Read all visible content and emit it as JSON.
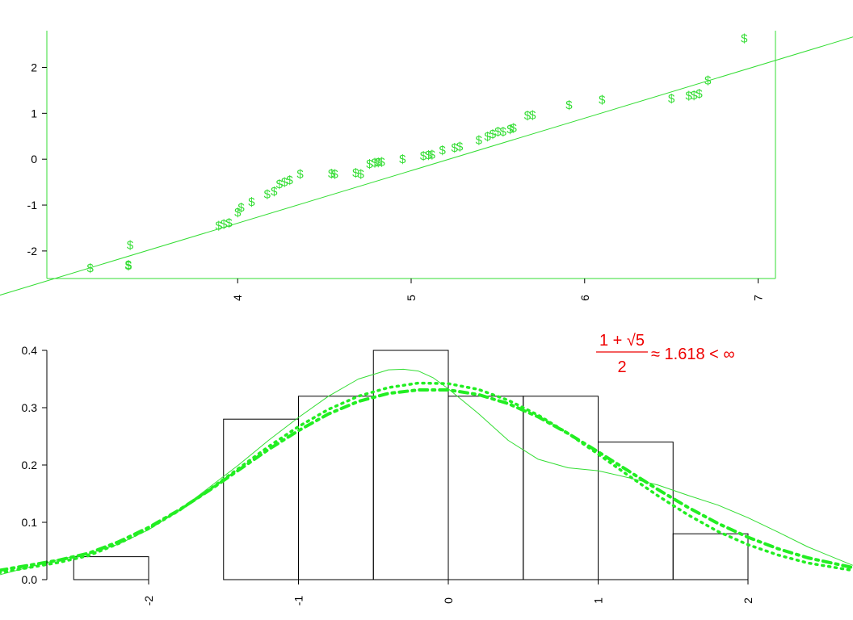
{
  "colors": {
    "points": "#33dd33",
    "line": "#33dd33",
    "curve_thin": "#33dd33",
    "curve_dashed": "#22ee22",
    "bars": "#000000",
    "annotation": "#ee0000"
  },
  "chart_data": [
    {
      "type": "scatter",
      "marker": "$",
      "title": "",
      "xlabel": "",
      "ylabel": "",
      "xlim": [
        2.9,
        7.1
      ],
      "ylim": [
        -2.6,
        2.8
      ],
      "xticks": [
        4,
        5,
        6,
        7
      ],
      "xtick_labels": [
        "4",
        "5",
        "6",
        "7"
      ],
      "yticks": [
        -2,
        -1,
        0,
        1,
        2
      ],
      "ytick_labels": [
        "-2",
        "-1",
        "0",
        "1",
        "2"
      ],
      "points": {
        "x": [
          3.15,
          3.37,
          3.37,
          3.38,
          3.89,
          3.92,
          3.95,
          4.0,
          4.02,
          4.08,
          4.17,
          4.21,
          4.24,
          4.27,
          4.3,
          4.36,
          4.54,
          4.56,
          4.68,
          4.71,
          4.76,
          4.79,
          4.81,
          4.83,
          4.95,
          5.07,
          5.1,
          5.12,
          5.18,
          5.25,
          5.28,
          5.39,
          5.44,
          5.47,
          5.5,
          5.53,
          5.57,
          5.59,
          5.67,
          5.7,
          5.91,
          6.1,
          6.5,
          6.6,
          6.63,
          6.66,
          6.71,
          6.92
        ],
        "y": [
          -2.37,
          -2.3,
          -2.32,
          -1.87,
          -1.45,
          -1.41,
          -1.39,
          -1.16,
          -1.05,
          -0.93,
          -0.76,
          -0.7,
          -0.54,
          -0.5,
          -0.45,
          -0.32,
          -0.31,
          -0.32,
          -0.3,
          -0.32,
          -0.1,
          -0.08,
          -0.07,
          -0.06,
          0.0,
          0.07,
          0.09,
          0.1,
          0.2,
          0.25,
          0.28,
          0.42,
          0.5,
          0.55,
          0.6,
          0.6,
          0.65,
          0.68,
          0.95,
          0.96,
          1.18,
          1.3,
          1.32,
          1.38,
          1.39,
          1.43,
          1.72,
          2.63
        ]
      },
      "line": {
        "intercept": -5.97,
        "slope": 1.144
      }
    },
    {
      "type": "bar",
      "title": "",
      "xlabel": "",
      "ylabel": "",
      "xlim": [
        -2.7,
        2.7
      ],
      "ylim": [
        0,
        0.4
      ],
      "xticks": [
        -2,
        -1,
        0,
        1,
        2
      ],
      "xtick_labels": [
        "-2",
        "-1",
        "0",
        "1",
        "2"
      ],
      "yticks": [
        0,
        0.1,
        0.2,
        0.3,
        0.4
      ],
      "ytick_labels": [
        "0.0",
        "0.1",
        "0.2",
        "0.3",
        "0.4"
      ],
      "bins": [
        {
          "x0": -2.5,
          "x1": -2.0,
          "density": 0.04
        },
        {
          "x0": -2.0,
          "x1": -1.5,
          "density": 0.0
        },
        {
          "x0": -1.5,
          "x1": -1.0,
          "density": 0.28
        },
        {
          "x0": -1.0,
          "x1": -0.5,
          "density": 0.32
        },
        {
          "x0": -0.5,
          "x1": 0.0,
          "density": 0.4
        },
        {
          "x0": 0.0,
          "x1": 0.5,
          "density": 0.32
        },
        {
          "x0": 0.5,
          "x1": 1.0,
          "density": 0.32
        },
        {
          "x0": 1.0,
          "x1": 1.5,
          "density": 0.24
        },
        {
          "x0": 1.5,
          "x1": 2.0,
          "density": 0.08
        }
      ],
      "curves": [
        {
          "style": "thin-solid",
          "x": [
            -3.0,
            -2.6,
            -2.4,
            -2.2,
            -2.0,
            -1.8,
            -1.6,
            -1.4,
            -1.2,
            -1.0,
            -0.8,
            -0.6,
            -0.4,
            -0.3,
            -0.2,
            -0.1,
            0.0,
            0.2,
            0.4,
            0.6,
            0.8,
            1.0,
            1.2,
            1.4,
            1.6,
            1.8,
            2.0,
            2.2,
            2.4,
            2.7
          ],
          "y": [
            0.008,
            0.035,
            0.045,
            0.062,
            0.087,
            0.12,
            0.16,
            0.2,
            0.243,
            0.283,
            0.32,
            0.35,
            0.366,
            0.367,
            0.364,
            0.352,
            0.333,
            0.29,
            0.243,
            0.21,
            0.195,
            0.19,
            0.178,
            0.165,
            0.147,
            0.13,
            0.108,
            0.083,
            0.057,
            0.025
          ]
        },
        {
          "style": "dotted",
          "x": [
            -3.0,
            -2.6,
            -2.4,
            -2.2,
            -2.0,
            -1.8,
            -1.6,
            -1.4,
            -1.2,
            -1.0,
            -0.8,
            -0.6,
            -0.4,
            -0.2,
            0.0,
            0.2,
            0.4,
            0.6,
            0.8,
            1.0,
            1.2,
            1.4,
            1.6,
            1.8,
            2.0,
            2.2,
            2.4,
            2.7
          ],
          "y": [
            0.012,
            0.03,
            0.042,
            0.063,
            0.089,
            0.12,
            0.156,
            0.194,
            0.232,
            0.267,
            0.297,
            0.32,
            0.335,
            0.343,
            0.342,
            0.332,
            0.313,
            0.287,
            0.255,
            0.219,
            0.182,
            0.146,
            0.113,
            0.084,
            0.061,
            0.043,
            0.029,
            0.016
          ]
        },
        {
          "style": "dashed-thick",
          "x": [
            -3.0,
            -2.6,
            -2.4,
            -2.2,
            -2.0,
            -1.8,
            -1.6,
            -1.4,
            -1.2,
            -1.0,
            -0.8,
            -0.6,
            -0.4,
            -0.2,
            0.0,
            0.2,
            0.4,
            0.6,
            0.8,
            1.0,
            1.2,
            1.4,
            1.6,
            1.8,
            2.0,
            2.2,
            2.4,
            2.7
          ],
          "y": [
            0.016,
            0.034,
            0.046,
            0.066,
            0.091,
            0.121,
            0.155,
            0.191,
            0.227,
            0.26,
            0.289,
            0.311,
            0.325,
            0.331,
            0.331,
            0.323,
            0.307,
            0.284,
            0.255,
            0.223,
            0.19,
            0.157,
            0.126,
            0.098,
            0.074,
            0.054,
            0.038,
            0.021
          ]
        }
      ],
      "annotation": {
        "numerator": "1 + √5",
        "denominator": "2",
        "approx": "≈ 1.618 < ∞"
      }
    }
  ]
}
